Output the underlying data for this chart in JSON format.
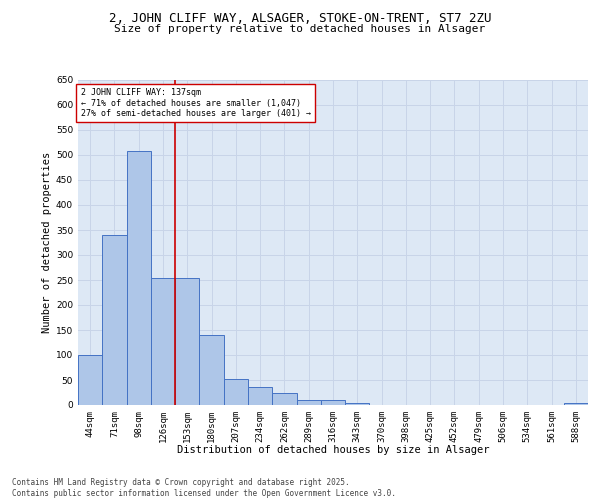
{
  "title1": "2, JOHN CLIFF WAY, ALSAGER, STOKE-ON-TRENT, ST7 2ZU",
  "title2": "Size of property relative to detached houses in Alsager",
  "xlabel": "Distribution of detached houses by size in Alsager",
  "ylabel": "Number of detached properties",
  "categories": [
    "44sqm",
    "71sqm",
    "98sqm",
    "126sqm",
    "153sqm",
    "180sqm",
    "207sqm",
    "234sqm",
    "262sqm",
    "289sqm",
    "316sqm",
    "343sqm",
    "370sqm",
    "398sqm",
    "425sqm",
    "452sqm",
    "479sqm",
    "506sqm",
    "534sqm",
    "561sqm",
    "588sqm"
  ],
  "values": [
    100,
    340,
    507,
    255,
    255,
    140,
    53,
    37,
    25,
    10,
    10,
    5,
    0,
    0,
    0,
    0,
    0,
    0,
    0,
    0,
    5
  ],
  "bar_color": "#aec6e8",
  "bar_edge_color": "#4472c4",
  "vline_color": "#cc0000",
  "annotation_text": "2 JOHN CLIFF WAY: 137sqm\n← 71% of detached houses are smaller (1,047)\n27% of semi-detached houses are larger (401) →",
  "annotation_box_color": "#ffffff",
  "annotation_box_edge": "#cc0000",
  "ylim": [
    0,
    650
  ],
  "yticks": [
    0,
    50,
    100,
    150,
    200,
    250,
    300,
    350,
    400,
    450,
    500,
    550,
    600,
    650
  ],
  "grid_color": "#c8d4e8",
  "background_color": "#dde8f5",
  "footer1": "Contains HM Land Registry data © Crown copyright and database right 2025.",
  "footer2": "Contains public sector information licensed under the Open Government Licence v3.0.",
  "title1_fontsize": 9,
  "title2_fontsize": 8,
  "xlabel_fontsize": 7.5,
  "ylabel_fontsize": 7.5,
  "tick_fontsize": 6.5,
  "footer_fontsize": 5.5,
  "ann_fontsize": 6.0
}
